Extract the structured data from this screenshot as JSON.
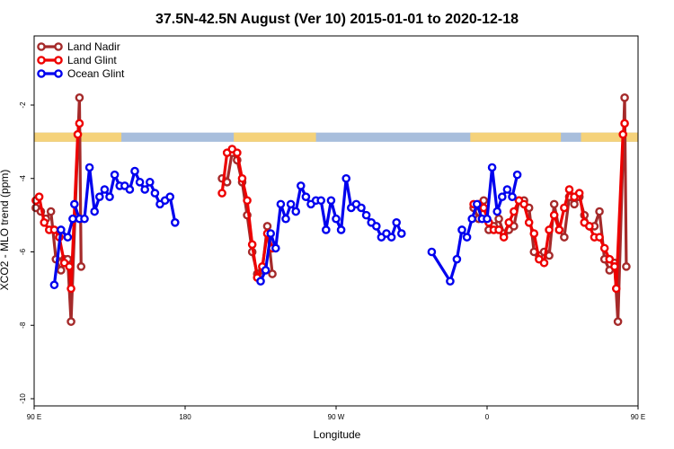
{
  "chart_data": {
    "type": "line",
    "title": "37.5N-42.5N August (Ver 10)   2015-01-01 to 2020-12-18",
    "xlabel": "Longitude",
    "ylabel": "XCO2 - MLO trend (ppm)",
    "xlim": [
      90,
      450
    ],
    "ylim": [
      -10,
      -1.5
    ],
    "x_ticks": [
      {
        "value": 90,
        "label": "90 E"
      },
      {
        "value": 180,
        "label": "180"
      },
      {
        "value": 270,
        "label": "90 W"
      },
      {
        "value": 360,
        "label": "0"
      },
      {
        "value": 450,
        "label": "90 E"
      },
      {
        "value": 540,
        "label": "180"
      }
    ],
    "y_ticks": [
      {
        "value": -2,
        "label": "-2"
      },
      {
        "value": -4,
        "label": "-4"
      },
      {
        "value": -6,
        "label": "-6"
      },
      {
        "value": -8,
        "label": "-8"
      },
      {
        "value": -10,
        "label": "-10"
      }
    ],
    "legend": {
      "placement": "top-left"
    },
    "land_strip": {
      "y_range": [
        -3.0,
        -2.75
      ],
      "ocean_color": "#a8bedc",
      "land_color": "#f5d27a",
      "land_segments": [
        [
          90,
          142
        ],
        [
          209,
          258
        ],
        [
          350,
          404
        ],
        [
          416,
          478
        ],
        [
          562,
          630
        ]
      ]
    },
    "series": [
      {
        "name": "Land Nadir",
        "color": "#a52a2a",
        "points": [
          [
            91,
            -4.8
          ],
          [
            94,
            -4.9
          ],
          [
            97,
            -5.1
          ],
          [
            100,
            -4.9
          ],
          [
            103,
            -6.2
          ],
          [
            106,
            -6.5
          ],
          [
            108,
            -6.2
          ],
          [
            110,
            -6.2
          ],
          [
            112,
            -7.9
          ],
          [
            117,
            -1.8
          ],
          [
            118,
            -6.4
          ],
          [
            202,
            -4.0
          ],
          [
            205,
            -4.1
          ],
          [
            208,
            -3.3
          ],
          [
            211,
            -3.5
          ],
          [
            214,
            -4.1
          ],
          [
            217,
            -5.0
          ],
          [
            220,
            -6.0
          ],
          [
            223,
            -6.6
          ],
          [
            226,
            -6.5
          ],
          [
            229,
            -5.3
          ],
          [
            232,
            -6.6
          ],
          [
            352,
            -4.8
          ],
          [
            355,
            -5.1
          ],
          [
            358,
            -4.6
          ],
          [
            361,
            -5.4
          ],
          [
            364,
            -5.3
          ],
          [
            367,
            -5.1
          ],
          [
            370,
            -5.5
          ],
          [
            373,
            -5.4
          ],
          [
            376,
            -5.3
          ],
          [
            379,
            -4.6
          ],
          [
            382,
            -4.6
          ],
          [
            385,
            -4.8
          ],
          [
            388,
            -6.0
          ],
          [
            391,
            -6.1
          ],
          [
            394,
            -6.0
          ],
          [
            397,
            -6.1
          ],
          [
            400,
            -4.7
          ],
          [
            403,
            -5.4
          ],
          [
            406,
            -5.6
          ],
          [
            409,
            -4.5
          ],
          [
            412,
            -4.7
          ],
          [
            415,
            -4.5
          ],
          [
            418,
            -5.0
          ],
          [
            421,
            -5.3
          ],
          [
            424,
            -5.3
          ],
          [
            427,
            -4.9
          ],
          [
            430,
            -6.2
          ],
          [
            433,
            -6.5
          ],
          [
            436,
            -6.3
          ],
          [
            438,
            -7.9
          ],
          [
            442,
            -1.8
          ],
          [
            443,
            -6.4
          ]
        ]
      },
      {
        "name": "Land Glint",
        "color": "#ee0000",
        "points": [
          [
            91,
            -4.6
          ],
          [
            93,
            -4.5
          ],
          [
            96,
            -5.2
          ],
          [
            99,
            -5.4
          ],
          [
            102,
            -5.4
          ],
          [
            105,
            -5.6
          ],
          [
            108,
            -6.3
          ],
          [
            111,
            -6.4
          ],
          [
            112,
            -7.0
          ],
          [
            116,
            -2.8
          ],
          [
            117,
            -2.5
          ],
          [
            202,
            -4.4
          ],
          [
            205,
            -3.3
          ],
          [
            208,
            -3.2
          ],
          [
            211,
            -3.3
          ],
          [
            214,
            -4.0
          ],
          [
            217,
            -4.6
          ],
          [
            220,
            -5.8
          ],
          [
            223,
            -6.7
          ],
          [
            226,
            -6.4
          ],
          [
            229,
            -5.5
          ],
          [
            232,
            -5.9
          ],
          [
            352,
            -4.7
          ],
          [
            355,
            -4.7
          ],
          [
            358,
            -4.8
          ],
          [
            361,
            -5.2
          ],
          [
            364,
            -5.4
          ],
          [
            367,
            -5.4
          ],
          [
            370,
            -5.6
          ],
          [
            373,
            -5.2
          ],
          [
            376,
            -4.9
          ],
          [
            379,
            -4.6
          ],
          [
            382,
            -4.7
          ],
          [
            385,
            -5.2
          ],
          [
            388,
            -5.5
          ],
          [
            391,
            -6.2
          ],
          [
            394,
            -6.3
          ],
          [
            397,
            -5.4
          ],
          [
            400,
            -5.0
          ],
          [
            403,
            -5.4
          ],
          [
            406,
            -4.8
          ],
          [
            409,
            -4.3
          ],
          [
            412,
            -4.5
          ],
          [
            415,
            -4.4
          ],
          [
            418,
            -5.2
          ],
          [
            421,
            -5.3
          ],
          [
            424,
            -5.6
          ],
          [
            427,
            -5.6
          ],
          [
            430,
            -5.9
          ],
          [
            433,
            -6.2
          ],
          [
            436,
            -6.4
          ],
          [
            437,
            -7.0
          ],
          [
            441,
            -2.8
          ],
          [
            442,
            -2.5
          ]
        ]
      },
      {
        "name": "Ocean Glint",
        "color": "#0000ee",
        "points": [
          [
            114,
            -4.7
          ],
          [
            117,
            -5.1
          ],
          [
            120,
            -5.1
          ],
          [
            123,
            -3.7
          ],
          [
            126,
            -4.9
          ],
          [
            129,
            -4.5
          ],
          [
            132,
            -4.3
          ],
          [
            135,
            -4.5
          ],
          [
            138,
            -3.9
          ],
          [
            141,
            -4.2
          ],
          [
            144,
            -4.2
          ],
          [
            147,
            -4.3
          ],
          [
            150,
            -3.8
          ],
          [
            153,
            -4.1
          ],
          [
            156,
            -4.3
          ],
          [
            159,
            -4.1
          ],
          [
            162,
            -4.4
          ],
          [
            165,
            -4.7
          ],
          [
            168,
            -4.6
          ],
          [
            171,
            -4.5
          ],
          [
            174,
            -5.2
          ],
          [
            102,
            -6.9
          ],
          [
            106,
            -5.4
          ],
          [
            110,
            -5.6
          ],
          [
            113,
            -5.1
          ],
          [
            225,
            -6.8
          ],
          [
            228,
            -6.5
          ],
          [
            231,
            -5.5
          ],
          [
            234,
            -5.9
          ],
          [
            237,
            -4.7
          ],
          [
            240,
            -5.1
          ],
          [
            243,
            -4.7
          ],
          [
            246,
            -4.9
          ],
          [
            249,
            -4.2
          ],
          [
            252,
            -4.5
          ],
          [
            255,
            -4.7
          ],
          [
            258,
            -4.6
          ],
          [
            261,
            -4.6
          ],
          [
            264,
            -5.4
          ],
          [
            267,
            -4.6
          ],
          [
            270,
            -5.1
          ],
          [
            273,
            -5.4
          ],
          [
            276,
            -4.0
          ],
          [
            279,
            -4.8
          ],
          [
            282,
            -4.7
          ],
          [
            285,
            -4.8
          ],
          [
            288,
            -5.0
          ],
          [
            291,
            -5.2
          ],
          [
            294,
            -5.3
          ],
          [
            297,
            -5.6
          ],
          [
            300,
            -5.5
          ],
          [
            303,
            -5.6
          ],
          [
            306,
            -5.2
          ],
          [
            309,
            -5.5
          ],
          [
            327,
            -6.0
          ],
          [
            338,
            -6.8
          ],
          [
            342,
            -6.2
          ],
          [
            345,
            -5.4
          ],
          [
            348,
            -5.6
          ],
          [
            351,
            -5.1
          ],
          [
            354,
            -4.7
          ],
          [
            357,
            -5.1
          ],
          [
            360,
            -5.1
          ],
          [
            363,
            -3.7
          ],
          [
            366,
            -4.9
          ],
          [
            369,
            -4.5
          ],
          [
            372,
            -4.3
          ],
          [
            375,
            -4.5
          ],
          [
            378,
            -3.9
          ]
        ]
      }
    ]
  }
}
